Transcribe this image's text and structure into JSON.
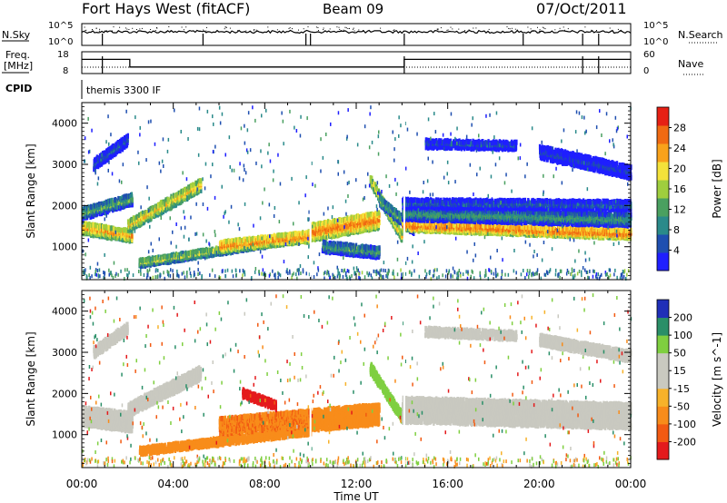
{
  "header": {
    "radar_title": "Fort Hays West (fitACF)",
    "beam_label": "Beam 09",
    "date": "07/Oct/2011"
  },
  "top_panels": {
    "nsky_label": "N.Sky",
    "nsky_ticks": [
      "10^5",
      "10^0"
    ],
    "nsearch_label": "N.Search",
    "nsearch_ticks": [
      "10^5",
      "10^0"
    ],
    "freq_label_1": "Freq.",
    "freq_label_2": "[MHz]",
    "freq_ticks": [
      "18",
      "8"
    ],
    "nave_label": "Nave",
    "nave_ticks": [
      "60",
      "0"
    ],
    "cpid_label": "CPID",
    "cpid_value": "themis 3300 IF"
  },
  "colors": {
    "power_scale": [
      "#1f1fff",
      "#1f4fb0",
      "#2a8a8a",
      "#4aa060",
      "#9fce3e",
      "#f4e23a",
      "#f9a21a",
      "#f06a12",
      "#e62014"
    ],
    "velocity_scale": [
      "#e41a1c",
      "#f25a12",
      "#f88c1a",
      "#f7b22a",
      "#c9c9c0",
      "#c9c9c0",
      "#7fcf40",
      "#2a8f68",
      "#1f2fb8"
    ]
  },
  "chart_data": [
    {
      "type": "heatmap",
      "title": "",
      "xlabel": "Time UT",
      "ylabel": "Slant Range [km]",
      "xlim": [
        "00:00",
        "24:00"
      ],
      "ylim": [
        200,
        4500
      ],
      "x_ticks": [
        "00:00",
        "04:00",
        "08:00",
        "12:00",
        "16:00",
        "20:00",
        "00:00"
      ],
      "y_ticks": [
        "1000",
        "2000",
        "3000",
        "4000"
      ],
      "colorbar_label": "Power [dB]",
      "colorbar_ticks": [
        "4",
        "8",
        "12",
        "16",
        "20",
        "24",
        "28"
      ],
      "colorbar_range": [
        0,
        32
      ],
      "bands": [
        {
          "t_start": 0.0,
          "t_end": 2.2,
          "r_start": 1450,
          "r_end": 1250,
          "width": 280,
          "value": 24
        },
        {
          "t_start": 0.0,
          "t_end": 2.2,
          "r_start": 1800,
          "r_end": 2150,
          "width": 260,
          "value": 14
        },
        {
          "t_start": 0.5,
          "t_end": 2.0,
          "r_start": 3000,
          "r_end": 3600,
          "width": 250,
          "value": 8
        },
        {
          "t_start": 2.0,
          "t_end": 5.2,
          "r_start": 1500,
          "r_end": 2500,
          "width": 280,
          "value": 22
        },
        {
          "t_start": 2.5,
          "t_end": 10.0,
          "r_start": 600,
          "r_end": 1250,
          "width": 180,
          "value": 18
        },
        {
          "t_start": 6.0,
          "t_end": 10.0,
          "r_start": 1000,
          "r_end": 1250,
          "width": 260,
          "value": 26
        },
        {
          "t_start": 10.0,
          "t_end": 13.0,
          "r_start": 1350,
          "r_end": 1650,
          "width": 400,
          "value": 27
        },
        {
          "t_start": 10.5,
          "t_end": 13.0,
          "r_start": 1000,
          "r_end": 850,
          "width": 250,
          "value": 13
        },
        {
          "t_start": 12.6,
          "t_end": 14.0,
          "r_start": 2600,
          "r_end": 1200,
          "width": 230,
          "value": 22
        },
        {
          "t_start": 13.0,
          "t_end": 14.5,
          "r_start": 2100,
          "r_end": 1400,
          "width": 220,
          "value": 15
        },
        {
          "t_start": 14.0,
          "t_end": 24.0,
          "r_start": 1500,
          "r_end": 1300,
          "width": 220,
          "value": 28
        },
        {
          "t_start": 14.0,
          "t_end": 24.0,
          "r_start": 1800,
          "r_end": 1650,
          "width": 300,
          "value": 13
        },
        {
          "t_start": 14.0,
          "t_end": 24.0,
          "r_start": 2050,
          "r_end": 2000,
          "width": 220,
          "value": 8
        },
        {
          "t_start": 15.0,
          "t_end": 19.0,
          "r_start": 3500,
          "r_end": 3450,
          "width": 200,
          "value": 6
        },
        {
          "t_start": 20.0,
          "t_end": 24.0,
          "r_start": 3300,
          "r_end": 2800,
          "width": 300,
          "value": 6
        }
      ]
    },
    {
      "type": "heatmap",
      "title": "",
      "xlabel": "Time UT",
      "ylabel": "Slant Range [km]",
      "xlim": [
        "00:00",
        "24:00"
      ],
      "ylim": [
        200,
        4500
      ],
      "x_ticks": [
        "00:00",
        "04:00",
        "08:00",
        "12:00",
        "16:00",
        "20:00",
        "00:00"
      ],
      "y_ticks": [
        "1000",
        "2000",
        "3000",
        "4000"
      ],
      "colorbar_label": "Velocity [m s^-1]",
      "colorbar_ticks": [
        "200",
        "100",
        "50",
        "15",
        "-15",
        "-50",
        "-100",
        "-200"
      ],
      "bands": [
        {
          "t_start": 0.0,
          "t_end": 2.2,
          "r_start": 1450,
          "r_end": 1300,
          "width": 450,
          "value": 0
        },
        {
          "t_start": 2.0,
          "t_end": 5.2,
          "r_start": 1600,
          "r_end": 2500,
          "width": 320,
          "value": 0
        },
        {
          "t_start": 0.5,
          "t_end": 2.0,
          "r_start": 3000,
          "r_end": 3600,
          "width": 250,
          "value": 0
        },
        {
          "t_start": 2.5,
          "t_end": 10.0,
          "r_start": 600,
          "r_end": 1100,
          "width": 180,
          "value": -60
        },
        {
          "t_start": 6.0,
          "t_end": 10.0,
          "r_start": 1200,
          "r_end": 1400,
          "width": 400,
          "value": -70
        },
        {
          "t_start": 7.0,
          "t_end": 8.5,
          "r_start": 2000,
          "r_end": 1700,
          "width": 200,
          "value": -250
        },
        {
          "t_start": 10.0,
          "t_end": 13.0,
          "r_start": 1350,
          "r_end": 1500,
          "width": 500,
          "value": -60
        },
        {
          "t_start": 12.6,
          "t_end": 14.0,
          "r_start": 2600,
          "r_end": 1400,
          "width": 250,
          "value": 60
        },
        {
          "t_start": 14.0,
          "t_end": 24.0,
          "r_start": 1600,
          "r_end": 1450,
          "width": 600,
          "value": 0
        },
        {
          "t_start": 15.0,
          "t_end": 19.0,
          "r_start": 3500,
          "r_end": 3400,
          "width": 200,
          "value": 0
        },
        {
          "t_start": 20.0,
          "t_end": 24.0,
          "r_start": 3300,
          "r_end": 2900,
          "width": 250,
          "value": 0
        }
      ]
    }
  ]
}
